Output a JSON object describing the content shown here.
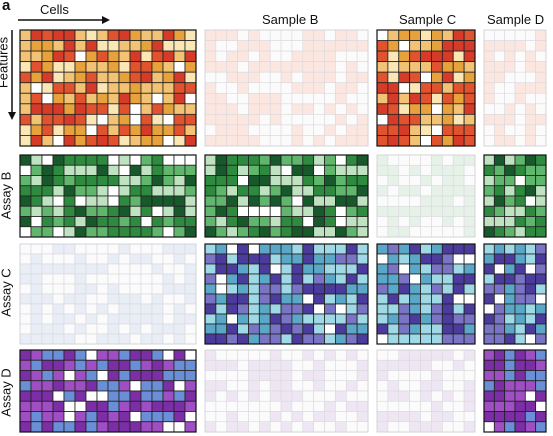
{
  "panel_letter": "a",
  "axis_labels": {
    "cells": "Cells",
    "features": "Features"
  },
  "column_labels": [
    "",
    "Sample B",
    "Sample C",
    "Sample D"
  ],
  "row_labels": [
    "",
    "Assay B",
    "Assay C",
    "Assay D"
  ],
  "colors": {
    "orange_palette": [
      "#ffffff",
      "#fbe7b6",
      "#f2c374",
      "#e8a23c",
      "#e0532e",
      "#d63b2a"
    ],
    "green_palette": [
      "#ffffff",
      "#bfe3c1",
      "#5fb66c",
      "#2d8a3f",
      "#17592a"
    ],
    "blue_palette": [
      "#ffffff",
      "#9fd9e6",
      "#5aa7c8",
      "#7a74c5",
      "#4b3b9d"
    ],
    "purple_palette": [
      "#ffffff",
      "#6b8fd6",
      "#a04ec4",
      "#7b2ea6"
    ],
    "faint_orange": "#fbe6e0",
    "faint_green": "#e6f1e8",
    "faint_blue": "#e9edf5",
    "faint_purple": "#efe6f3",
    "grid_line": "#222222",
    "faint_grid_line": "#ffffff"
  }
}
